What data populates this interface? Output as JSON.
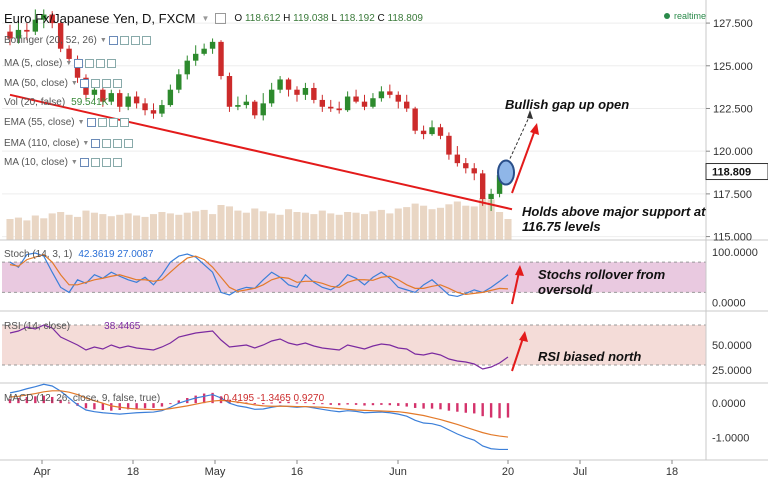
{
  "header": {
    "title": "Euro Fx/Japanese Yen, D, FXCM",
    "ohlc": {
      "o_label": "O",
      "o": "118.612",
      "h_label": "H",
      "h": "119.038",
      "l_label": "L",
      "l": "118.192",
      "c_label": "C",
      "c": "118.809"
    },
    "realtime_label": "realtime"
  },
  "overlays": {
    "items": [
      {
        "label": "Bollinger (20, 52, 26)",
        "value": ""
      },
      {
        "label": "MA (5, close)",
        "value": ""
      },
      {
        "label": "MA (50, close)",
        "value": ""
      },
      {
        "label": "Vol (20, false)",
        "value": "59.541K"
      },
      {
        "label": "EMA (55, close)",
        "value": ""
      },
      {
        "label": "EMA (110, close)",
        "value": ""
      },
      {
        "label": "MA (10, close)",
        "value": ""
      }
    ]
  },
  "annotations": {
    "gap": "Bullish gap up open",
    "support_1": "Holds above major support at",
    "support_2": "116.75 levels",
    "stoch_1": "Stochs rollover from",
    "stoch_2": "oversold",
    "rsi": "RSI biased north"
  },
  "colors": {
    "up": "#2d8a2d",
    "down": "#cc2b2b",
    "volume": "#e9d6c4",
    "stoch_band": "#e9c9e0",
    "rsi_band": "#f4dcd8",
    "accent_red": "#e31b1b"
  },
  "chart_data": [
    {
      "type": "candlestick",
      "title": "Euro Fx/Japanese Yen, D, FXCM",
      "x_ticks": [
        "Apr",
        "18",
        "May",
        "16",
        "Jun",
        "20",
        "Jul",
        "18"
      ],
      "y_ticks": [
        "127.500",
        "125.000",
        "122.500",
        "120.000",
        "117.500",
        "115.000"
      ],
      "ylim": [
        114.8,
        128.5
      ],
      "last_price": "118.809",
      "candles": [
        [
          127.0,
          126.6,
          127.4,
          126.2
        ],
        [
          126.6,
          127.1,
          127.6,
          126.3
        ],
        [
          127.1,
          127.0,
          127.5,
          126.5
        ],
        [
          127.0,
          127.7,
          128.3,
          126.8
        ],
        [
          127.7,
          128.0,
          128.3,
          127.2
        ],
        [
          128.0,
          127.5,
          128.2,
          127.2
        ],
        [
          127.5,
          126.0,
          127.6,
          125.8
        ],
        [
          126.0,
          125.4,
          126.2,
          125.1
        ],
        [
          125.4,
          124.3,
          125.6,
          124.0
        ],
        [
          124.3,
          123.3,
          124.5,
          123.0
        ],
        [
          123.3,
          123.6,
          123.9,
          123.0
        ],
        [
          123.6,
          122.9,
          123.8,
          122.6
        ],
        [
          122.9,
          123.4,
          123.6,
          122.7
        ],
        [
          123.4,
          122.6,
          123.6,
          122.3
        ],
        [
          122.6,
          123.2,
          123.4,
          122.4
        ],
        [
          123.2,
          122.8,
          123.5,
          122.5
        ],
        [
          122.8,
          122.4,
          123.1,
          122.1
        ],
        [
          122.4,
          122.2,
          122.8,
          121.9
        ],
        [
          122.2,
          122.7,
          123.0,
          122.0
        ],
        [
          122.7,
          123.6,
          123.9,
          122.6
        ],
        [
          123.6,
          124.5,
          124.8,
          123.4
        ],
        [
          124.5,
          125.3,
          125.6,
          124.2
        ],
        [
          125.3,
          125.7,
          126.2,
          125.0
        ],
        [
          125.7,
          126.0,
          126.3,
          125.6
        ],
        [
          126.0,
          126.4,
          126.6,
          125.7
        ],
        [
          126.4,
          124.4,
          126.5,
          124.2
        ],
        [
          124.4,
          122.6,
          124.6,
          122.3
        ],
        [
          122.6,
          122.7,
          123.2,
          122.4
        ],
        [
          122.7,
          122.9,
          123.3,
          122.5
        ],
        [
          122.9,
          122.1,
          123.0,
          121.9
        ],
        [
          122.1,
          122.8,
          123.4,
          121.8
        ],
        [
          122.8,
          123.6,
          124.0,
          122.6
        ],
        [
          123.6,
          124.2,
          124.4,
          123.4
        ],
        [
          124.2,
          123.6,
          124.3,
          123.2
        ],
        [
          123.6,
          123.3,
          123.8,
          122.9
        ],
        [
          123.3,
          123.7,
          124.0,
          123.0
        ],
        [
          123.7,
          123.0,
          124.0,
          122.8
        ],
        [
          123.0,
          122.6,
          123.3,
          122.3
        ],
        [
          122.6,
          122.5,
          123.0,
          122.3
        ],
        [
          122.5,
          122.4,
          122.9,
          122.2
        ],
        [
          122.4,
          123.2,
          123.5,
          122.3
        ],
        [
          123.2,
          122.9,
          123.6,
          122.8
        ],
        [
          122.9,
          122.6,
          123.3,
          122.4
        ],
        [
          122.6,
          123.1,
          123.4,
          122.5
        ],
        [
          123.1,
          123.5,
          123.8,
          122.9
        ],
        [
          123.5,
          123.3,
          123.9,
          123.1
        ],
        [
          123.3,
          122.9,
          123.5,
          122.5
        ],
        [
          122.9,
          122.5,
          123.3,
          122.3
        ],
        [
          122.5,
          121.2,
          122.6,
          121.0
        ],
        [
          121.2,
          121.0,
          121.5,
          120.7
        ],
        [
          121.0,
          121.4,
          121.8,
          120.9
        ],
        [
          121.4,
          120.9,
          121.6,
          120.7
        ],
        [
          120.9,
          119.8,
          121.1,
          119.5
        ],
        [
          119.8,
          119.3,
          120.3,
          119.1
        ],
        [
          119.3,
          119.0,
          119.6,
          118.7
        ],
        [
          119.0,
          118.7,
          119.3,
          118.3
        ],
        [
          118.7,
          117.2,
          118.9,
          116.8
        ],
        [
          117.2,
          117.5,
          117.8,
          116.5
        ],
        [
          117.5,
          118.6,
          118.8,
          117.3
        ],
        [
          118.6,
          118.8,
          119.0,
          118.2
        ]
      ],
      "volume": [
        30,
        32,
        28,
        35,
        31,
        38,
        40,
        36,
        33,
        42,
        39,
        37,
        34,
        36,
        38,
        35,
        33,
        37,
        40,
        38,
        36,
        39,
        41,
        43,
        37,
        50,
        48,
        42,
        39,
        45,
        41,
        38,
        36,
        44,
        40,
        39,
        37,
        42,
        38,
        36,
        40,
        39,
        37,
        41,
        43,
        38,
        45,
        47,
        52,
        49,
        44,
        46,
        51,
        55,
        49,
        48,
        60,
        58,
        40,
        30
      ]
    },
    {
      "type": "line",
      "title": "Stoch (14, 3, 1)",
      "values_label": "42.3619 27.0087",
      "y_ticks": [
        "100.0000",
        "0.0000"
      ],
      "ylim": [
        -5,
        110
      ],
      "series": [
        {
          "name": "%K",
          "values": [
            80,
            70,
            95,
            98,
            92,
            60,
            30,
            20,
            45,
            38,
            55,
            48,
            60,
            52,
            45,
            40,
            50,
            35,
            55,
            80,
            92,
            96,
            90,
            75,
            60,
            20,
            15,
            25,
            30,
            28,
            45,
            60,
            50,
            35,
            30,
            55,
            40,
            30,
            25,
            35,
            55,
            48,
            35,
            50,
            60,
            48,
            30,
            25,
            20,
            35,
            45,
            30,
            15,
            12,
            18,
            25,
            20,
            30,
            42,
            55
          ]
        },
        {
          "name": "%D",
          "values": [
            75,
            72,
            85,
            90,
            95,
            80,
            55,
            35,
            35,
            40,
            45,
            48,
            52,
            55,
            50,
            45,
            45,
            42,
            45,
            60,
            75,
            88,
            92,
            85,
            70,
            50,
            30,
            22,
            25,
            28,
            35,
            45,
            50,
            48,
            40,
            42,
            42,
            38,
            32,
            30,
            40,
            45,
            45,
            44,
            50,
            52,
            45,
            35,
            28,
            28,
            32,
            35,
            28,
            20,
            16,
            18,
            20,
            24,
            28,
            27
          ]
        }
      ]
    },
    {
      "type": "line",
      "title": "RSI (14, close)",
      "values_label": "38.4465",
      "y_ticks": [
        "50.0000",
        "25.0000"
      ],
      "ylim": [
        15,
        80
      ],
      "series": [
        {
          "name": "RSI",
          "values": [
            62,
            64,
            68,
            66,
            70,
            67,
            58,
            54,
            50,
            45,
            48,
            46,
            50,
            47,
            49,
            47,
            46,
            45,
            48,
            52,
            58,
            60,
            62,
            63,
            64,
            55,
            48,
            49,
            50,
            47,
            50,
            54,
            56,
            52,
            50,
            52,
            49,
            47,
            46,
            45,
            50,
            48,
            46,
            49,
            51,
            50,
            47,
            46,
            41,
            40,
            42,
            40,
            36,
            34,
            33,
            31,
            26,
            28,
            32,
            38
          ]
        }
      ]
    },
    {
      "type": "bar",
      "title": "MACD (12, 26, close, 9, false, true)",
      "values_label": "-0.4195 -1.3465 0.9270",
      "y_ticks": [
        "0.0000",
        "-1.0000"
      ],
      "ylim": [
        -1.6,
        0.5
      ],
      "histogram": [
        0.12,
        0.15,
        0.18,
        0.2,
        0.22,
        0.18,
        0.1,
        0.02,
        -0.08,
        -0.15,
        -0.18,
        -0.2,
        -0.22,
        -0.2,
        -0.18,
        -0.16,
        -0.15,
        -0.14,
        -0.1,
        -0.02,
        0.08,
        0.15,
        0.22,
        0.28,
        0.3,
        0.2,
        0.1,
        0.05,
        0.02,
        -0.02,
        -0.02,
        0.02,
        0.05,
        0.04,
        0.02,
        0.03,
        0.0,
        -0.03,
        -0.05,
        -0.06,
        -0.04,
        -0.05,
        -0.07,
        -0.06,
        -0.05,
        -0.06,
        -0.08,
        -0.1,
        -0.14,
        -0.16,
        -0.16,
        -0.18,
        -0.22,
        -0.25,
        -0.28,
        -0.3,
        -0.38,
        -0.42,
        -0.44,
        -0.42
      ],
      "series": [
        {
          "name": "MACD",
          "values": [
            0.3,
            0.35,
            0.42,
            0.48,
            0.55,
            0.5,
            0.35,
            0.15,
            -0.05,
            -0.2,
            -0.25,
            -0.28,
            -0.3,
            -0.32,
            -0.3,
            -0.28,
            -0.27,
            -0.26,
            -0.22,
            -0.12,
            0.0,
            0.08,
            0.15,
            0.2,
            0.25,
            0.15,
            0.0,
            -0.08,
            -0.12,
            -0.18,
            -0.17,
            -0.12,
            -0.08,
            -0.1,
            -0.12,
            -0.1,
            -0.14,
            -0.18,
            -0.22,
            -0.25,
            -0.22,
            -0.24,
            -0.28,
            -0.27,
            -0.26,
            -0.28,
            -0.32,
            -0.38,
            -0.5,
            -0.58,
            -0.6,
            -0.66,
            -0.78,
            -0.9,
            -1.0,
            -1.08,
            -1.25,
            -1.33,
            -1.35,
            -1.35
          ]
        },
        {
          "name": "Signal",
          "values": [
            0.18,
            0.2,
            0.24,
            0.28,
            0.33,
            0.36,
            0.36,
            0.32,
            0.25,
            0.15,
            0.07,
            0.0,
            -0.08,
            -0.12,
            -0.15,
            -0.17,
            -0.18,
            -0.19,
            -0.19,
            -0.16,
            -0.12,
            -0.08,
            -0.03,
            0.02,
            0.06,
            0.08,
            0.06,
            0.03,
            -0.01,
            -0.05,
            -0.08,
            -0.09,
            -0.09,
            -0.09,
            -0.1,
            -0.1,
            -0.11,
            -0.12,
            -0.14,
            -0.16,
            -0.18,
            -0.2,
            -0.21,
            -0.22,
            -0.23,
            -0.24,
            -0.25,
            -0.28,
            -0.32,
            -0.36,
            -0.42,
            -0.48,
            -0.55,
            -0.62,
            -0.7,
            -0.78,
            -0.86,
            -0.92,
            -0.96,
            -0.99
          ]
        }
      ]
    }
  ]
}
